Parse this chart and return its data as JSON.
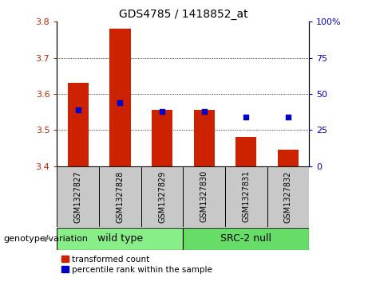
{
  "title": "GDS4785 / 1418852_at",
  "samples": [
    "GSM1327827",
    "GSM1327828",
    "GSM1327829",
    "GSM1327830",
    "GSM1327831",
    "GSM1327832"
  ],
  "bar_values": [
    3.63,
    3.78,
    3.555,
    3.555,
    3.48,
    3.445
  ],
  "dot_values": [
    3.555,
    3.575,
    3.552,
    3.552,
    3.537,
    3.537
  ],
  "bar_color": "#cc2200",
  "dot_color": "#0000cc",
  "ylim_left": [
    3.4,
    3.8
  ],
  "ylim_right": [
    0,
    100
  ],
  "y_ticks_left": [
    3.4,
    3.5,
    3.6,
    3.7,
    3.8
  ],
  "y_ticks_right": [
    0,
    25,
    50,
    75,
    100
  ],
  "grid_lines": [
    3.5,
    3.6,
    3.7
  ],
  "groups": [
    {
      "label": "wild type",
      "indices": [
        0,
        1,
        2
      ],
      "color": "#88ee88"
    },
    {
      "label": "SRC-2 null",
      "indices": [
        3,
        4,
        5
      ],
      "color": "#66dd66"
    }
  ],
  "legend_label_red": "transformed count",
  "legend_label_blue": "percentile rank within the sample",
  "genotype_label": "genotype/variation",
  "bar_bottom": 3.4,
  "plot_bg": "#ffffff",
  "left_tick_color": "#cc2200",
  "right_tick_color": "#0000cc",
  "title_fontsize": 10,
  "tick_fontsize": 8,
  "sample_fontsize": 7,
  "group_fontsize": 9,
  "legend_fontsize": 7.5,
  "genotype_fontsize": 8,
  "bar_width": 0.5,
  "dot_size": 18
}
